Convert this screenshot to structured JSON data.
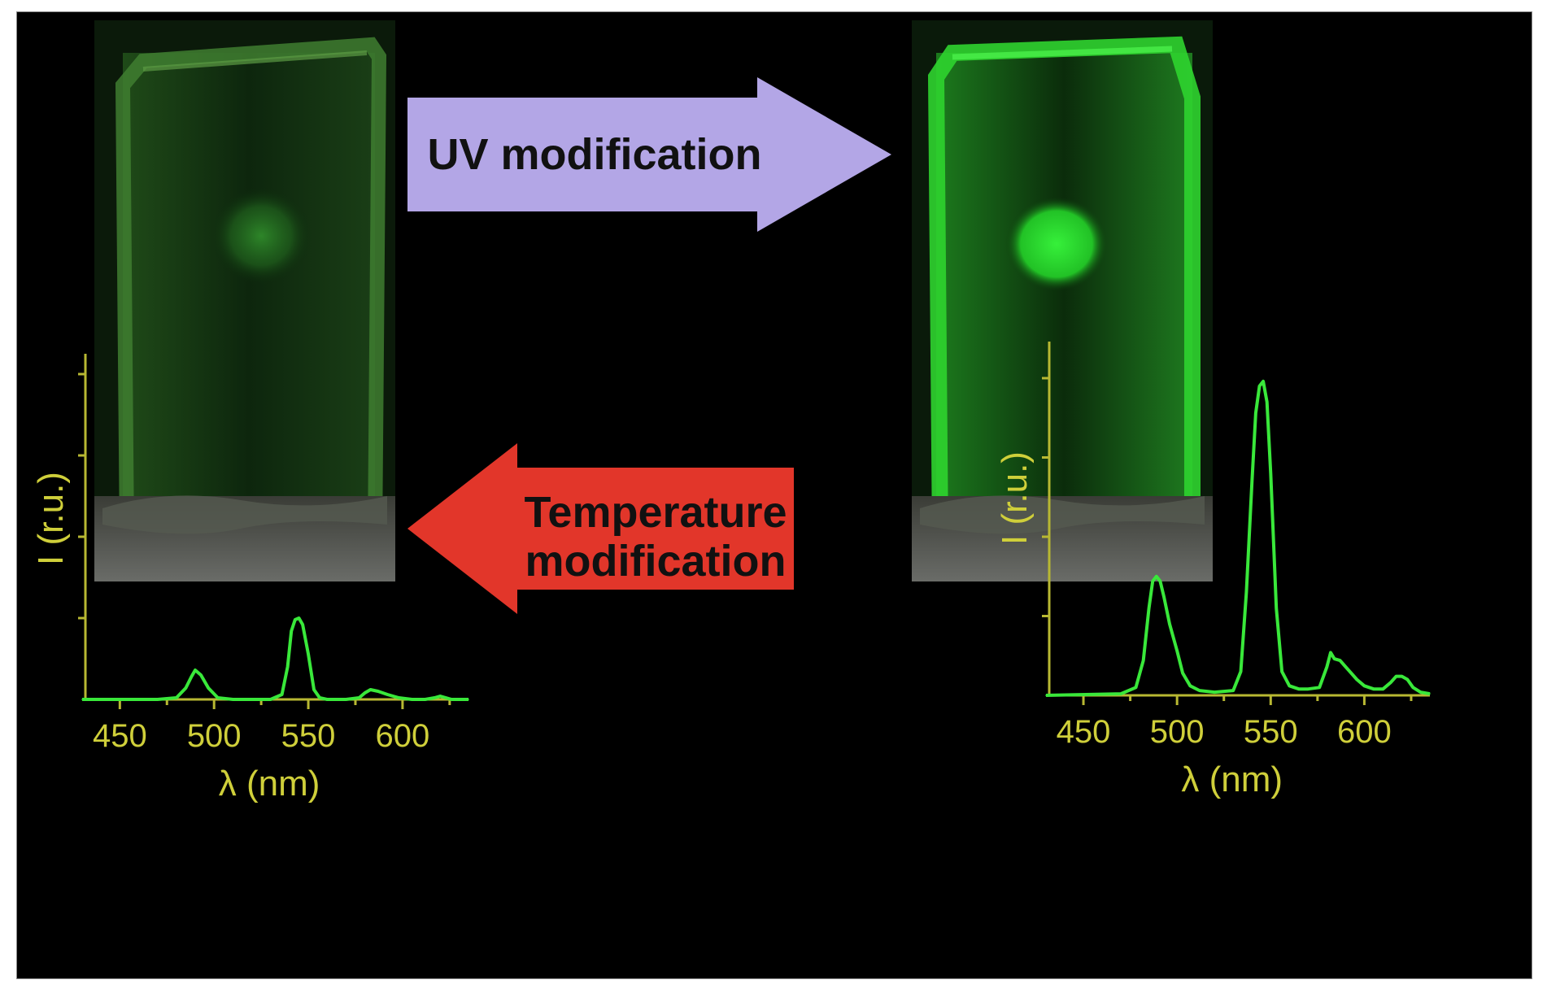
{
  "colors": {
    "background": "#000000",
    "axis": "#b8b832",
    "axis_text": "#cfcf3a",
    "spectrum_line": "#39e83a",
    "uv_arrow": "#b3a6e6",
    "temp_arrow": "#e2362a",
    "arrow_text": "#111111"
  },
  "arrows": {
    "uv": {
      "label": "UV modification",
      "direction": "right"
    },
    "temperature": {
      "label_line1": "Temperature",
      "label_line2": "modification",
      "direction": "left"
    }
  },
  "photos": {
    "left": {
      "description_icon": "glass-sample-dim-green-spot"
    },
    "right": {
      "description_icon": "glass-sample-bright-green-spot"
    }
  },
  "chart_data": [
    {
      "type": "line",
      "xlabel": "λ (nm)",
      "ylabel": "I (r.u.)",
      "xlim": [
        430,
        635
      ],
      "ylim": [
        0,
        2.0
      ],
      "xticks": [
        450,
        500,
        550,
        600
      ],
      "xtick_labels": [
        "450",
        "500",
        "550",
        "600"
      ],
      "yticks": [
        0.5,
        1.0,
        1.5,
        2.0
      ],
      "grid": false,
      "series": [
        {
          "x": [
            430,
            470,
            480,
            485,
            488,
            490,
            493,
            497,
            502,
            510,
            530,
            536,
            539,
            541,
            543,
            545,
            547,
            550,
            553,
            556,
            560,
            570,
            577,
            580,
            583,
            587,
            592,
            598,
            605,
            612,
            617,
            620,
            623,
            626,
            635
          ],
          "y": [
            0.0,
            0.0,
            0.01,
            0.07,
            0.14,
            0.18,
            0.15,
            0.07,
            0.01,
            0.0,
            0.0,
            0.03,
            0.2,
            0.42,
            0.49,
            0.5,
            0.46,
            0.28,
            0.06,
            0.01,
            0.0,
            0.0,
            0.01,
            0.04,
            0.06,
            0.05,
            0.03,
            0.01,
            0.0,
            0.0,
            0.01,
            0.02,
            0.01,
            0.0,
            0.0
          ]
        }
      ]
    },
    {
      "type": "line",
      "xlabel": "λ (nm)",
      "ylabel": "I (r.u.)",
      "xlim": [
        430,
        635
      ],
      "ylim": [
        0,
        2.0
      ],
      "xticks": [
        450,
        500,
        550,
        600
      ],
      "xtick_labels": [
        "450",
        "500",
        "550",
        "600"
      ],
      "yticks": [
        0.5,
        1.0,
        1.5,
        2.0
      ],
      "grid": false,
      "series": [
        {
          "x": [
            430,
            470,
            478,
            482,
            485,
            487,
            489,
            491,
            493,
            496,
            500,
            503,
            507,
            512,
            520,
            530,
            534,
            537,
            540,
            542,
            544,
            546,
            548,
            550,
            553,
            556,
            560,
            565,
            570,
            576,
            580,
            582,
            584,
            587,
            590,
            593,
            596,
            600,
            605,
            610,
            614,
            617,
            620,
            623,
            626,
            630,
            635
          ],
          "y": [
            0.0,
            0.01,
            0.05,
            0.22,
            0.55,
            0.72,
            0.75,
            0.72,
            0.62,
            0.45,
            0.28,
            0.14,
            0.06,
            0.03,
            0.02,
            0.03,
            0.15,
            0.65,
            1.35,
            1.78,
            1.95,
            1.98,
            1.85,
            1.4,
            0.55,
            0.15,
            0.06,
            0.04,
            0.04,
            0.05,
            0.18,
            0.27,
            0.23,
            0.22,
            0.18,
            0.14,
            0.1,
            0.06,
            0.04,
            0.04,
            0.08,
            0.12,
            0.12,
            0.1,
            0.05,
            0.02,
            0.01
          ]
        }
      ]
    }
  ]
}
